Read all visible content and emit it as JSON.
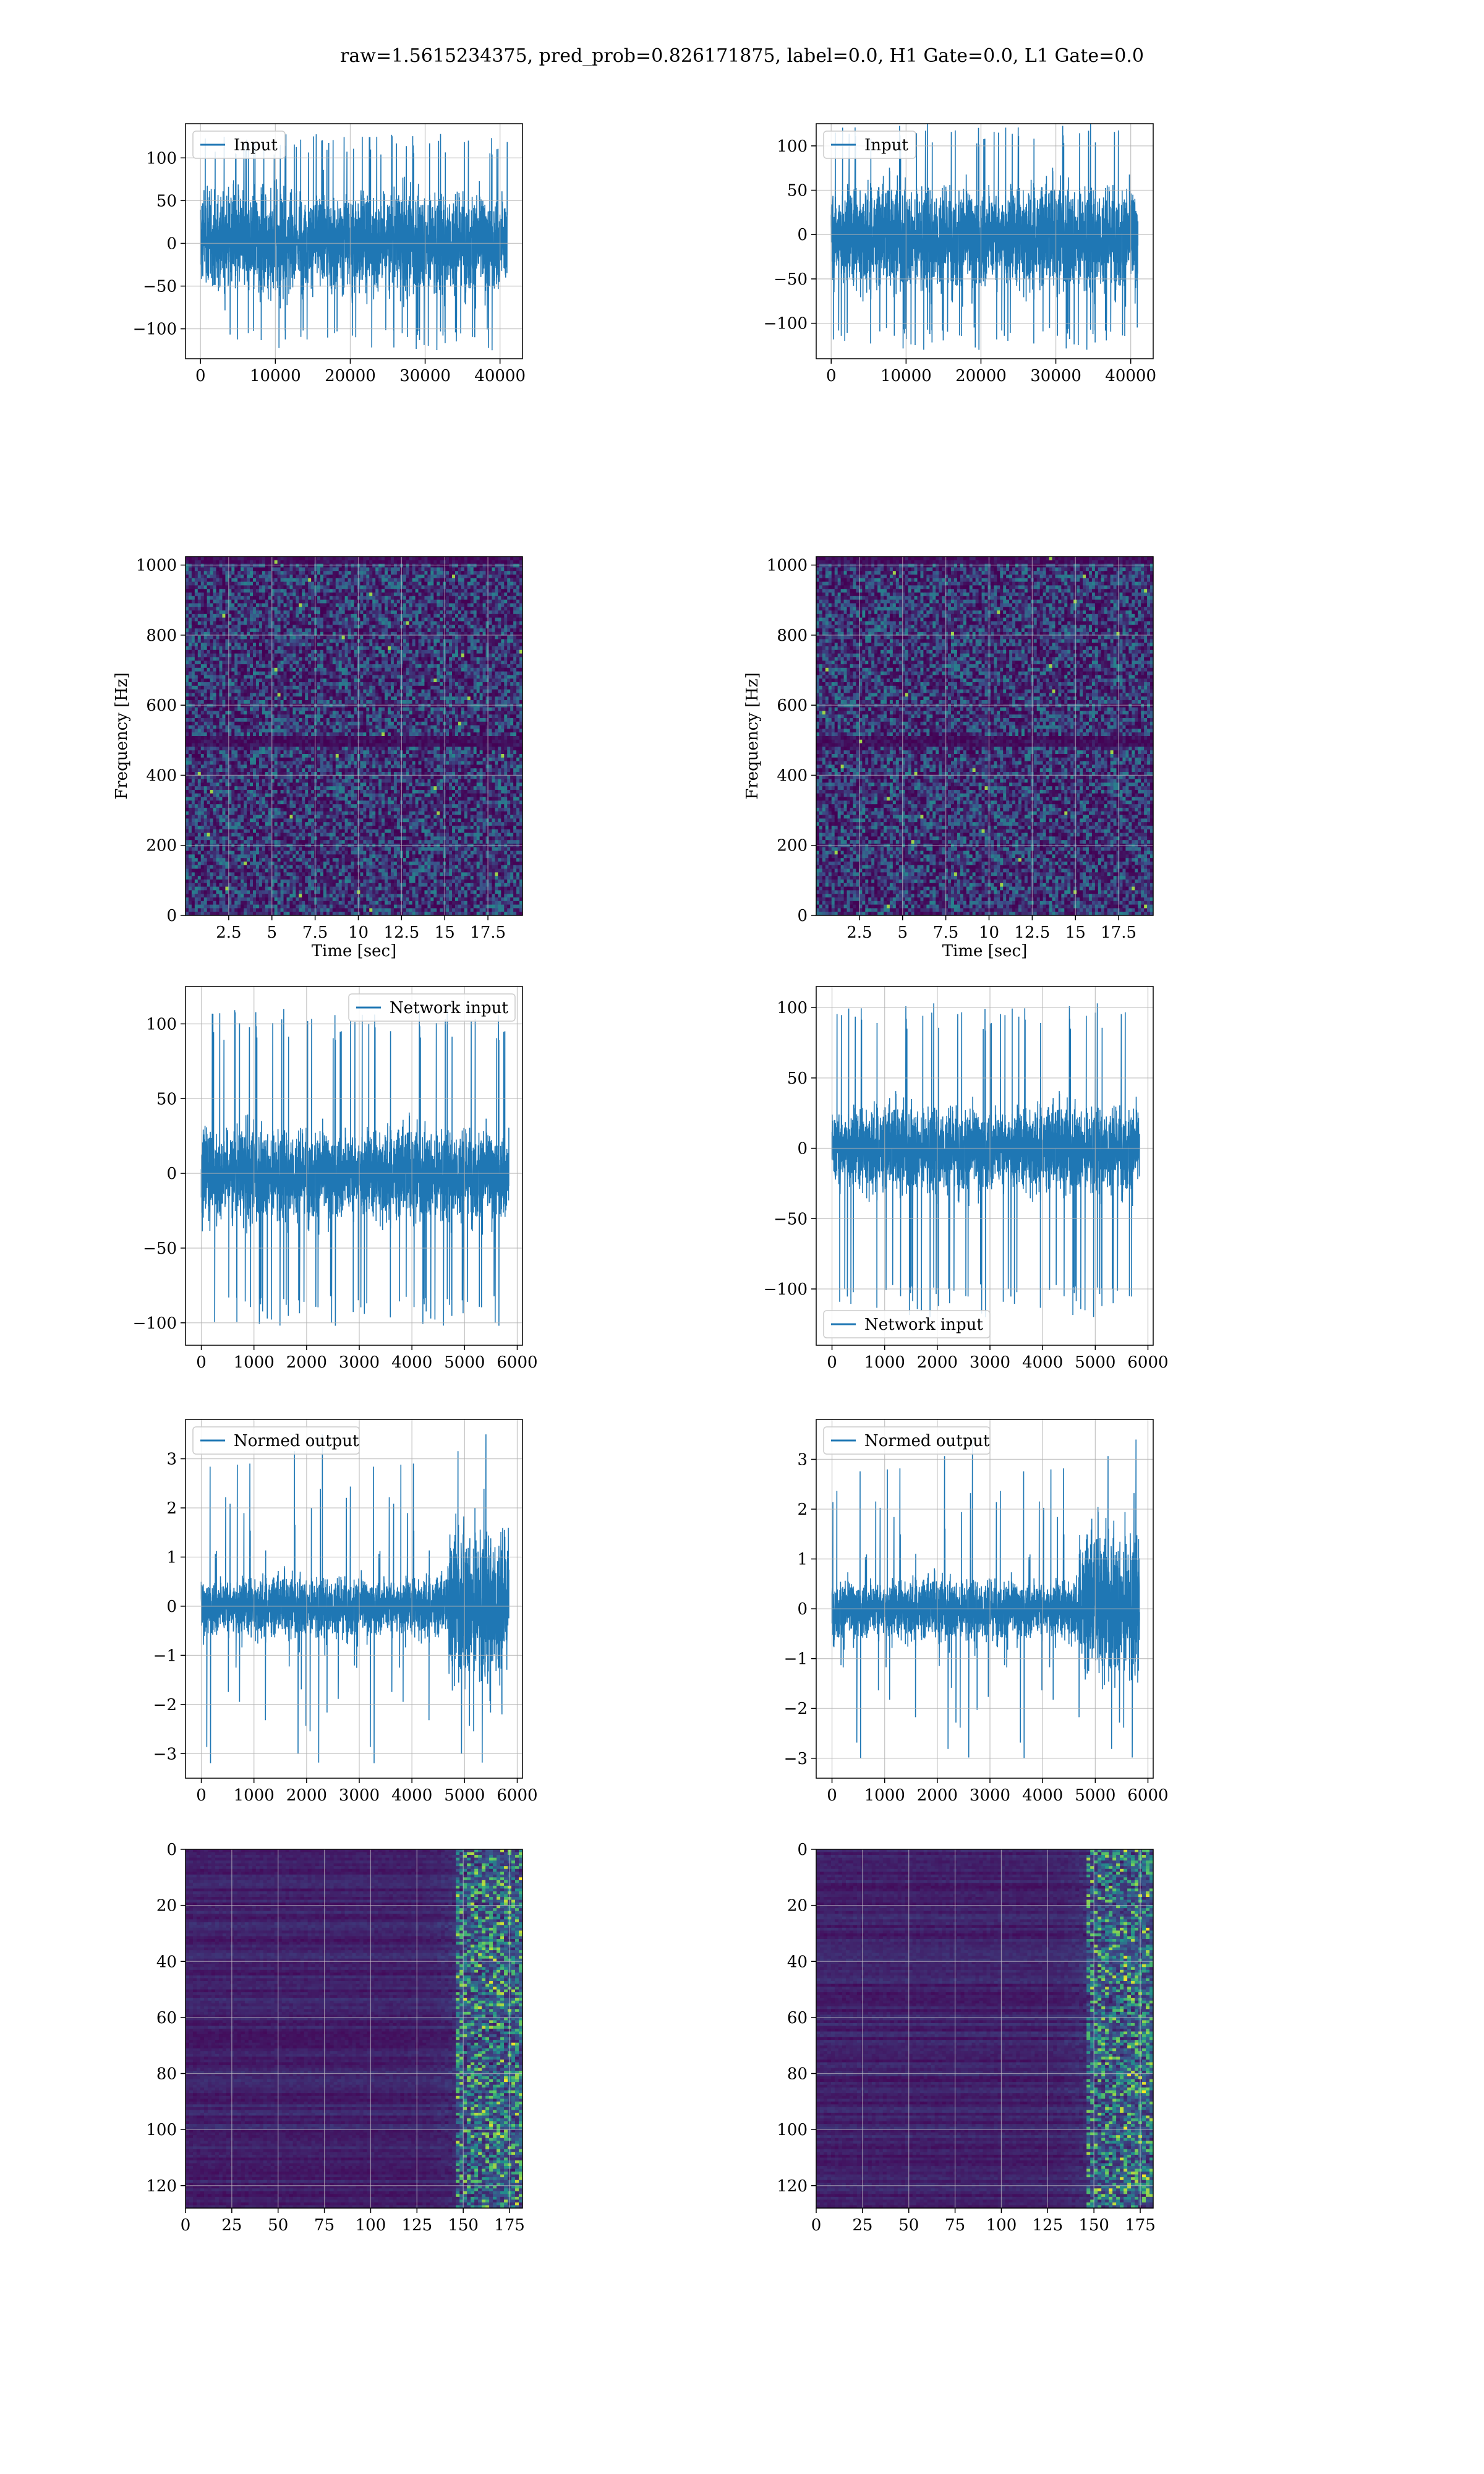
{
  "figure": {
    "suptitle": "raw=1.5615234375, pred_prob=0.826171875, label=0.0, H1 Gate=0.0, L1 Gate=0.0"
  },
  "colors": {
    "line": "#1f77b4",
    "viridis_dark": "#440154",
    "viridis_mid": "#3b528b",
    "viridis_teal": "#21918c",
    "viridis_green": "#5ec962",
    "viridis_yellow": "#fde725",
    "grid": "#b0b0b0"
  },
  "chart_data": [
    {
      "id": "input_h1",
      "type": "line",
      "title": "",
      "xlabel": "",
      "ylabel": "",
      "xlim": [
        -2000,
        43000
      ],
      "ylim": [
        -135,
        140
      ],
      "xticks": [
        0,
        10000,
        20000,
        30000,
        40000
      ],
      "yticks": [
        -100,
        -50,
        0,
        50,
        100
      ],
      "series": [
        {
          "name": "Input",
          "n_samples": 40960,
          "core_amplitude": [
            -55,
            60
          ],
          "peaks": [
            -125,
            128
          ]
        }
      ],
      "legend": "upper left",
      "grid": true
    },
    {
      "id": "input_l1",
      "type": "line",
      "title": "",
      "xlabel": "",
      "ylabel": "",
      "xlim": [
        -2000,
        43000
      ],
      "ylim": [
        -140,
        125
      ],
      "xticks": [
        0,
        10000,
        20000,
        30000,
        40000
      ],
      "yticks": [
        -100,
        -50,
        0,
        50,
        100
      ],
      "series": [
        {
          "name": "Input",
          "n_samples": 40960,
          "core_amplitude": [
            -60,
            55
          ],
          "peaks": [
            -130,
            125
          ]
        }
      ],
      "legend": "upper left",
      "grid": true
    },
    {
      "id": "spec_h1",
      "type": "heatmap",
      "title": "",
      "xlabel": "Time [sec]",
      "ylabel": "Frequency [Hz]",
      "xlim": [
        0,
        19.5
      ],
      "ylim": [
        0,
        1024
      ],
      "xticks": [
        2.5,
        5.0,
        7.5,
        10.0,
        12.5,
        15.0,
        17.5
      ],
      "yticks": [
        0,
        200,
        400,
        600,
        800,
        1000
      ],
      "colormap": "viridis",
      "grid": true,
      "features": [
        {
          "kind": "dark band",
          "frequency": 500
        },
        {
          "kind": "dark band",
          "frequency": 1000
        }
      ]
    },
    {
      "id": "spec_l1",
      "type": "heatmap",
      "title": "",
      "xlabel": "Time [sec]",
      "ylabel": "Frequency [Hz]",
      "xlim": [
        0,
        19.5
      ],
      "ylim": [
        0,
        1024
      ],
      "xticks": [
        2.5,
        5.0,
        7.5,
        10.0,
        12.5,
        15.0,
        17.5
      ],
      "yticks": [
        0,
        200,
        400,
        600,
        800,
        1000
      ],
      "colormap": "viridis",
      "grid": true,
      "features": [
        {
          "kind": "dark band",
          "frequency": 500
        },
        {
          "kind": "dark band",
          "frequency": 1000
        }
      ]
    },
    {
      "id": "net_h1",
      "type": "line",
      "title": "",
      "xlabel": "",
      "ylabel": "",
      "xlim": [
        -300,
        6100
      ],
      "ylim": [
        -115,
        125
      ],
      "xticks": [
        0,
        1000,
        2000,
        3000,
        4000,
        5000,
        6000
      ],
      "yticks": [
        -100,
        -50,
        0,
        50,
        100
      ],
      "series": [
        {
          "name": "Network input",
          "n_samples": 5840,
          "core_amplitude": [
            -30,
            30
          ],
          "peaks": [
            -102,
            110
          ]
        }
      ],
      "legend": "upper right",
      "grid": true
    },
    {
      "id": "net_l1",
      "type": "line",
      "title": "",
      "xlabel": "",
      "ylabel": "",
      "xlim": [
        -300,
        6100
      ],
      "ylim": [
        -140,
        115
      ],
      "xticks": [
        0,
        1000,
        2000,
        3000,
        4000,
        5000,
        6000
      ],
      "yticks": [
        -100,
        -50,
        0,
        50,
        100
      ],
      "series": [
        {
          "name": "Network input",
          "n_samples": 5840,
          "core_amplitude": [
            -30,
            30
          ],
          "peaks": [
            -120,
            103
          ]
        }
      ],
      "legend": "lower left",
      "grid": true
    },
    {
      "id": "norm_h1",
      "type": "line",
      "title": "",
      "xlabel": "",
      "ylabel": "",
      "xlim": [
        -300,
        6100
      ],
      "ylim": [
        -3.5,
        3.8
      ],
      "xticks": [
        0,
        1000,
        2000,
        3000,
        4000,
        5000,
        6000
      ],
      "yticks": [
        -3,
        -2,
        -1,
        0,
        1,
        2,
        3
      ],
      "series": [
        {
          "name": "Normed output",
          "n_samples": 5840,
          "core_amplitude": [
            -0.6,
            0.6
          ],
          "burst_start": 4700,
          "burst_amplitude": [
            -3.2,
            3.5
          ]
        }
      ],
      "legend": "upper left",
      "grid": true
    },
    {
      "id": "norm_l1",
      "type": "line",
      "title": "",
      "xlabel": "",
      "ylabel": "",
      "xlim": [
        -300,
        6100
      ],
      "ylim": [
        -3.4,
        3.8
      ],
      "xticks": [
        0,
        1000,
        2000,
        3000,
        4000,
        5000,
        6000
      ],
      "yticks": [
        -3,
        -2,
        -1,
        0,
        1,
        2,
        3
      ],
      "series": [
        {
          "name": "Normed output",
          "n_samples": 5840,
          "core_amplitude": [
            -0.6,
            0.6
          ],
          "burst_start": 4700,
          "burst_amplitude": [
            -3.0,
            3.4
          ]
        }
      ],
      "legend": "upper left",
      "grid": true
    },
    {
      "id": "feat_h1",
      "type": "heatmap",
      "title": "",
      "xlabel": "",
      "ylabel": "",
      "xlim": [
        0,
        182
      ],
      "ylim": [
        128,
        0
      ],
      "xticks": [
        0,
        25,
        50,
        75,
        100,
        125,
        150,
        175
      ],
      "yticks": [
        0,
        20,
        40,
        60,
        80,
        100,
        120
      ],
      "colormap": "viridis",
      "grid": true,
      "features": [
        {
          "kind": "activity increase",
          "from_column": 125
        },
        {
          "kind": "strong activity",
          "from_column": 145
        }
      ]
    },
    {
      "id": "feat_l1",
      "type": "heatmap",
      "title": "",
      "xlabel": "",
      "ylabel": "",
      "xlim": [
        0,
        182
      ],
      "ylim": [
        128,
        0
      ],
      "xticks": [
        0,
        25,
        50,
        75,
        100,
        125,
        150,
        175
      ],
      "yticks": [
        0,
        20,
        40,
        60,
        80,
        100,
        120
      ],
      "colormap": "viridis",
      "grid": true,
      "features": [
        {
          "kind": "activity increase",
          "from_column": 125
        },
        {
          "kind": "strong activity",
          "from_column": 145
        }
      ]
    }
  ]
}
